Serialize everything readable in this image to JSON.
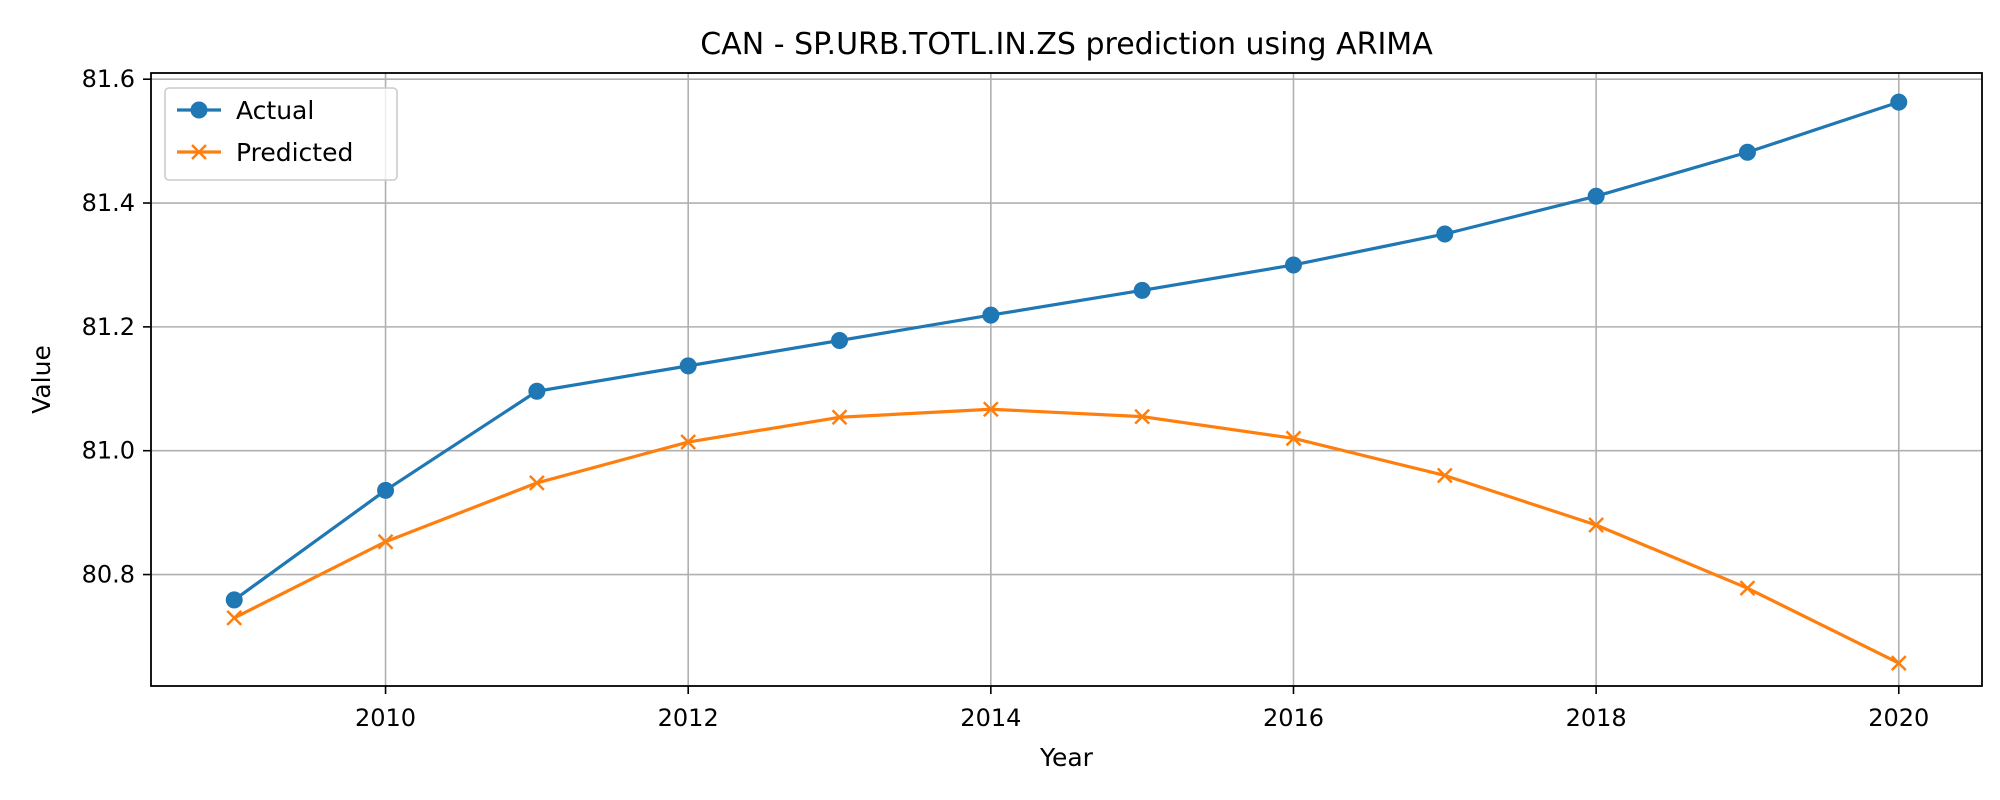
{
  "chart_data": {
    "type": "line",
    "title": "CAN - SP.URB.TOTL.IN.ZS prediction using ARIMA",
    "xlabel": "Year",
    "ylabel": "Value",
    "x": [
      2009,
      2010,
      2011,
      2012,
      2013,
      2014,
      2015,
      2016,
      2017,
      2018,
      2019,
      2020
    ],
    "xlim": [
      2008.45,
      2020.55
    ],
    "ylim": [
      80.62,
      81.61
    ],
    "x_ticks": [
      2010,
      2012,
      2014,
      2016,
      2018,
      2020
    ],
    "y_ticks": [
      80.8,
      81.0,
      81.2,
      81.4,
      81.6
    ],
    "y_tick_labels": [
      "80.8",
      "81.0",
      "81.2",
      "81.4",
      "81.6"
    ],
    "grid": true,
    "legend_position": "top-left",
    "series": [
      {
        "name": "Actual",
        "color": "#1f77b4",
        "marker": "circle",
        "values": [
          80.759,
          80.936,
          81.096,
          81.137,
          81.178,
          81.219,
          81.259,
          81.3,
          81.35,
          81.411,
          81.482,
          81.563
        ]
      },
      {
        "name": "Predicted",
        "color": "#ff7f0e",
        "marker": "x",
        "values": [
          80.73,
          80.853,
          80.948,
          81.014,
          81.054,
          81.067,
          81.055,
          81.02,
          80.96,
          80.88,
          80.778,
          80.657
        ]
      }
    ]
  }
}
